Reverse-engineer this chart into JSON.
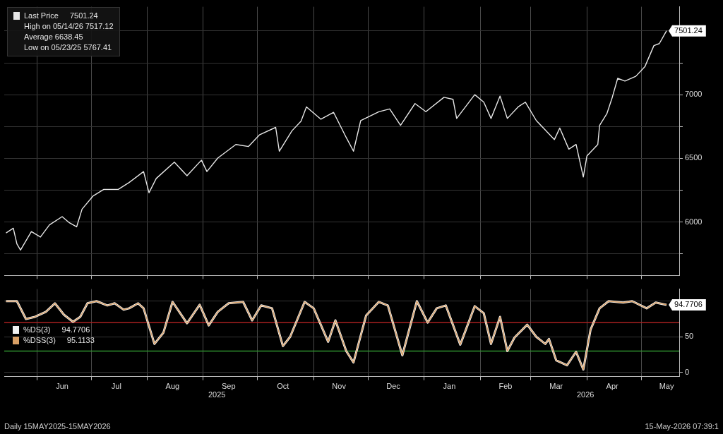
{
  "chart_data": [
    {
      "type": "line",
      "x": [
        "2025-05-15",
        "2025-05-19",
        "2025-05-21",
        "2025-05-23",
        "2025-05-29",
        "2025-06-03",
        "2025-06-08",
        "2025-06-15",
        "2025-06-19",
        "2025-06-23",
        "2025-06-26",
        "2025-07-02",
        "2025-07-08",
        "2025-07-16",
        "2025-07-22",
        "2025-07-30",
        "2025-08-02",
        "2025-08-06",
        "2025-08-16",
        "2025-08-23",
        "2025-08-31",
        "2025-09-03",
        "2025-09-09",
        "2025-09-19",
        "2025-09-26",
        "2025-10-02",
        "2025-10-11",
        "2025-10-13",
        "2025-10-20",
        "2025-10-25",
        "2025-10-28",
        "2025-11-05",
        "2025-11-12",
        "2025-11-19",
        "2025-11-23",
        "2025-11-27",
        "2025-12-07",
        "2025-12-13",
        "2025-12-19",
        "2025-12-27",
        "2026-01-02",
        "2026-01-12",
        "2026-01-17",
        "2026-01-19",
        "2026-01-29",
        "2026-02-03",
        "2026-02-07",
        "2026-02-12",
        "2026-02-16",
        "2026-02-22",
        "2026-02-26",
        "2026-03-04",
        "2026-03-09",
        "2026-03-14",
        "2026-03-17",
        "2026-03-22",
        "2026-03-26",
        "2026-03-30",
        "2026-04-01",
        "2026-04-07",
        "2026-04-08",
        "2026-04-12",
        "2026-04-15",
        "2026-04-18",
        "2026-04-22",
        "2026-04-28",
        "2026-05-03",
        "2026-05-08",
        "2026-05-11",
        "2026-05-15"
      ],
      "series": [
        {
          "name": "Last Price",
          "color": "#e6e6e6",
          "values": [
            5914,
            5951,
            5828,
            5780,
            5925,
            5882,
            5978,
            6042,
            5994,
            5962,
            6101,
            6203,
            6256,
            6256,
            6310,
            6396,
            6230,
            6342,
            6470,
            6363,
            6486,
            6396,
            6502,
            6609,
            6593,
            6684,
            6743,
            6556,
            6716,
            6791,
            6904,
            6807,
            6861,
            6663,
            6556,
            6797,
            6866,
            6888,
            6759,
            6930,
            6866,
            6979,
            6963,
            6813,
            7000,
            6941,
            6813,
            6989,
            6813,
            6904,
            6941,
            6797,
            6722,
            6647,
            6738,
            6572,
            6609,
            6353,
            6519,
            6609,
            6759,
            6850,
            6979,
            7128,
            7107,
            7144,
            7219,
            7385,
            7401,
            7501.24
          ],
          "value_labels": [
            null,
            null,
            null,
            null,
            null,
            null,
            null,
            null,
            null,
            null,
            null,
            null,
            null,
            null,
            null,
            null,
            null,
            null,
            null,
            null,
            null,
            null,
            null,
            null,
            null,
            null,
            null,
            null,
            null,
            null,
            null,
            null,
            null,
            null,
            null,
            null,
            null,
            null,
            null,
            null,
            null,
            null,
            null,
            null,
            null,
            null,
            null,
            null,
            null,
            null,
            null,
            null,
            null,
            null,
            null,
            null,
            null,
            null,
            null,
            null,
            null,
            null,
            null,
            null,
            null,
            null,
            null,
            null,
            null,
            "7501.24"
          ]
        }
      ],
      "xlim": [
        "2025-05-14",
        "2026-05-22"
      ],
      "xticks": [
        {
          "value": "2025-06-01",
          "label": null
        },
        {
          "value": "2025-07-01",
          "label": null
        },
        {
          "value": "2025-08-01",
          "label": null
        },
        {
          "value": "2025-09-01",
          "label": null
        },
        {
          "value": "2025-10-01",
          "label": null
        },
        {
          "value": "2025-11-01",
          "label": null
        },
        {
          "value": "2025-12-01",
          "label": null
        },
        {
          "value": "2026-01-01",
          "label": null
        },
        {
          "value": "2026-02-01",
          "label": null
        },
        {
          "value": "2026-03-01",
          "label": null
        },
        {
          "value": "2026-04-01",
          "label": null
        },
        {
          "value": "2026-05-01",
          "label": null
        }
      ],
      "ylim": [
        5580,
        7690
      ],
      "yticks": [
        {
          "value": 5750,
          "label": null
        },
        6000,
        {
          "value": 6250,
          "label": null
        },
        6500,
        {
          "value": 6750,
          "label": null
        },
        7000,
        {
          "value": 7250,
          "label": null
        },
        {
          "value": 7500,
          "label": null
        }
      ],
      "grid": true,
      "legend": "top left",
      "tick_labels": "y",
      "annotations": [
        "7501.24",
        "High on 05/14/26 7517.12",
        "Average 6638.45",
        "Low on 05/23/25 5767.41"
      ]
    },
    {
      "type": "line",
      "x": [
        "2025-05-15",
        "2025-05-21",
        "2025-05-26",
        "2025-05-31",
        "2025-06-06",
        "2025-06-11",
        "2025-06-16",
        "2025-06-21",
        "2025-06-25",
        "2025-06-29",
        "2025-07-04",
        "2025-07-10",
        "2025-07-14",
        "2025-07-19",
        "2025-07-22",
        "2025-07-27",
        "2025-07-30",
        "2025-08-05",
        "2025-08-10",
        "2025-08-15",
        "2025-08-23",
        "2025-08-30",
        "2025-09-04",
        "2025-09-09",
        "2025-09-15",
        "2025-09-23",
        "2025-09-28",
        "2025-10-03",
        "2025-10-09",
        "2025-10-15",
        "2025-10-19",
        "2025-10-27",
        "2025-11-01",
        "2025-11-09",
        "2025-11-13",
        "2025-11-19",
        "2025-11-23",
        "2025-11-30",
        "2025-12-07",
        "2025-12-12",
        "2025-12-20",
        "2025-12-28",
        "2026-01-03",
        "2026-01-08",
        "2026-01-13",
        "2026-01-21",
        "2026-01-29",
        "2026-02-03",
        "2026-02-07",
        "2026-02-12",
        "2026-02-16",
        "2026-02-20",
        "2026-02-27",
        "2026-03-04",
        "2026-03-09",
        "2026-03-11",
        "2026-03-15",
        "2026-03-21",
        "2026-03-26",
        "2026-03-30",
        "2026-04-03",
        "2026-04-08",
        "2026-04-13",
        "2026-04-21",
        "2026-04-26",
        "2026-05-04",
        "2026-05-09",
        "2026-05-15"
      ],
      "series": [
        {
          "name": "%DS(3)",
          "color": "#f2f2f2",
          "values": [
            100,
            100,
            75,
            78,
            85,
            97,
            81,
            71,
            78,
            97,
            100,
            94,
            97,
            88,
            90,
            97,
            90,
            40,
            56,
            99,
            69,
            95,
            66,
            85,
            97,
            99,
            73,
            94,
            90,
            37,
            50,
            99,
            90,
            43,
            73,
            30,
            14,
            80,
            99,
            94,
            24,
            100,
            70,
            90,
            94,
            39,
            93,
            83,
            40,
            78,
            30,
            49,
            67,
            50,
            40,
            47,
            17,
            10,
            29,
            4,
            60,
            90,
            100,
            98,
            100,
            90,
            98,
            94.7706
          ],
          "value_labels": [
            null,
            null,
            null,
            null,
            null,
            null,
            null,
            null,
            null,
            null,
            null,
            null,
            null,
            null,
            null,
            null,
            null,
            null,
            null,
            null,
            null,
            null,
            null,
            null,
            null,
            null,
            null,
            null,
            null,
            null,
            null,
            null,
            null,
            null,
            null,
            null,
            null,
            null,
            null,
            null,
            null,
            null,
            null,
            null,
            null,
            null,
            null,
            null,
            null,
            null,
            null,
            null,
            null,
            null,
            null,
            null,
            null,
            null,
            null,
            null,
            null,
            null,
            null,
            null,
            null,
            null,
            null,
            "94.7706"
          ]
        },
        {
          "name": "%DSS(3)",
          "color": "#d9a066",
          "values": [
            100,
            100,
            75,
            78,
            85,
            97,
            81,
            71,
            78,
            97,
            100,
            94,
            97,
            88,
            90,
            97,
            90,
            40,
            56,
            99,
            69,
            95,
            66,
            85,
            97,
            99,
            73,
            94,
            90,
            37,
            50,
            99,
            90,
            43,
            73,
            30,
            14,
            80,
            99,
            94,
            24,
            100,
            70,
            90,
            94,
            39,
            93,
            83,
            40,
            78,
            30,
            49,
            67,
            50,
            40,
            47,
            17,
            10,
            29,
            4,
            60,
            90,
            100,
            98,
            100,
            90,
            98,
            95.1133
          ]
        }
      ],
      "xlim": [
        "2025-05-14",
        "2026-05-22"
      ],
      "xticks": [
        {
          "value": "2025-06-01",
          "label": null
        },
        {
          "value": "2025-06-15",
          "label": "Jun"
        },
        {
          "value": "2025-07-01",
          "label": null
        },
        {
          "value": "2025-07-15",
          "label": "Jul"
        },
        {
          "value": "2025-08-01",
          "label": null
        },
        {
          "value": "2025-08-15",
          "label": "Aug"
        },
        {
          "value": "2025-09-01",
          "label": null
        },
        {
          "value": "2025-09-15",
          "label": "Sep"
        },
        {
          "value": "2025-10-01",
          "label": null
        },
        {
          "value": "2025-10-15",
          "label": "Oct"
        },
        {
          "value": "2025-11-01",
          "label": null
        },
        {
          "value": "2025-11-15",
          "label": "Nov"
        },
        {
          "value": "2025-12-01",
          "label": null
        },
        {
          "value": "2025-12-15",
          "label": "Dec"
        },
        {
          "value": "2026-01-01",
          "label": null
        },
        {
          "value": "2026-01-15",
          "label": "Jan"
        },
        {
          "value": "2026-02-01",
          "label": null
        },
        {
          "value": "2026-02-15",
          "label": "Feb"
        },
        {
          "value": "2026-03-01",
          "label": null
        },
        {
          "value": "2026-03-15",
          "label": "Mar"
        },
        {
          "value": "2026-04-01",
          "label": null
        },
        {
          "value": "2026-04-15",
          "label": "Apr"
        },
        {
          "value": "2026-05-01",
          "label": null
        },
        {
          "value": "2026-05-15",
          "label": "May"
        }
      ],
      "ylim": [
        -6,
        117
      ],
      "yticks": [
        0,
        50,
        {
          "value": 100,
          "label": null
        }
      ],
      "ref_lines": [
        {
          "axis": "y",
          "value": 70,
          "color": "#a82020"
        },
        {
          "axis": "y",
          "value": 30,
          "color": "#2f8f2f"
        }
      ],
      "grid": true,
      "legend": "left",
      "annotations": [
        "94.7706",
        "95.1133",
        "2025",
        "2026",
        "Daily 15MAY2025-15MAY2026",
        "15-May-2026 07:39:1"
      ]
    }
  ]
}
